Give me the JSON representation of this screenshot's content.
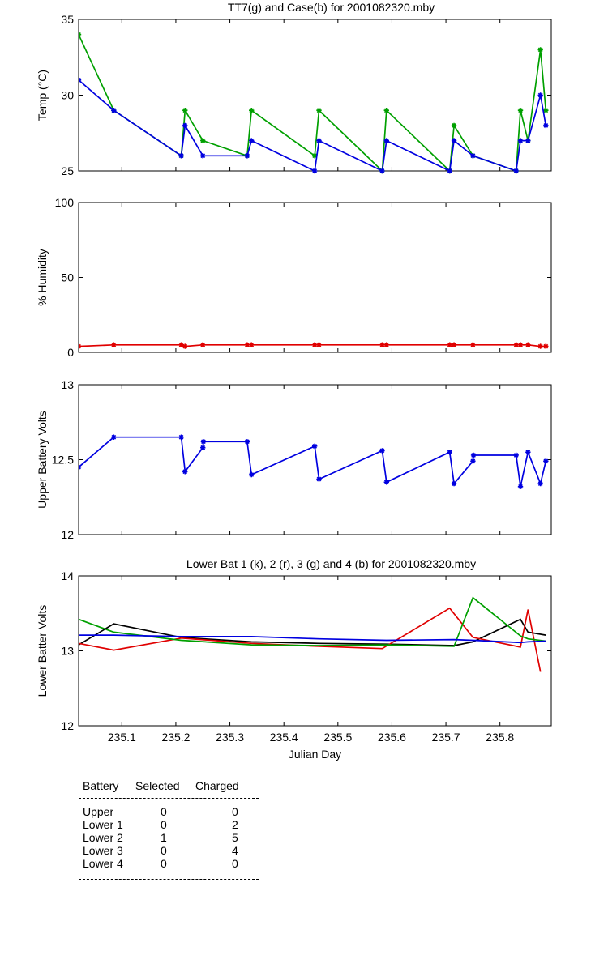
{
  "chart_data": [
    {
      "type": "line",
      "title": "TT7(g) and Case(b) for 2001082320.mby",
      "xlabel": "",
      "ylabel": "Temp  (°C)",
      "xlim": [
        235.02,
        235.895
      ],
      "ylim": [
        25,
        35
      ],
      "yticks": [
        "25",
        "30",
        "35"
      ],
      "xticks": [
        235.1,
        235.2,
        235.3,
        235.4,
        235.5,
        235.6,
        235.7,
        235.8
      ],
      "show_xtick_labels": false,
      "grid": false,
      "markers": true,
      "series": [
        {
          "color": "#00a000",
          "x": [
            235.02,
            235.085,
            235.21,
            235.217,
            235.25,
            235.332,
            235.34,
            235.457,
            235.465,
            235.582,
            235.59,
            235.707,
            235.715,
            235.75,
            235.83,
            235.838,
            235.852,
            235.875,
            235.885
          ],
          "y": [
            34,
            29,
            26,
            29,
            27,
            26,
            29,
            26,
            29,
            25,
            29,
            25,
            28,
            26,
            25,
            29,
            27,
            33,
            29
          ]
        },
        {
          "color": "#0000e0",
          "x": [
            235.02,
            235.085,
            235.21,
            235.217,
            235.25,
            235.332,
            235.34,
            235.457,
            235.465,
            235.582,
            235.59,
            235.707,
            235.715,
            235.75,
            235.83,
            235.838,
            235.852,
            235.875,
            235.885
          ],
          "y": [
            31,
            29,
            26,
            28,
            26,
            26,
            27,
            25,
            27,
            25,
            27,
            25,
            27,
            26,
            25,
            27,
            27,
            30,
            28
          ]
        }
      ]
    },
    {
      "type": "line",
      "title": "",
      "xlabel": "",
      "ylabel": "% Humidity",
      "xlim": [
        235.02,
        235.895
      ],
      "ylim": [
        0,
        100
      ],
      "yticks": [
        "0",
        "50",
        "100"
      ],
      "xticks": [
        235.1,
        235.2,
        235.3,
        235.4,
        235.5,
        235.6,
        235.7,
        235.8
      ],
      "show_xtick_labels": false,
      "grid": false,
      "markers": true,
      "series": [
        {
          "color": "#e00000",
          "x": [
            235.02,
            235.085,
            235.21,
            235.217,
            235.25,
            235.332,
            235.34,
            235.457,
            235.465,
            235.582,
            235.59,
            235.707,
            235.715,
            235.75,
            235.83,
            235.838,
            235.852,
            235.875,
            235.885
          ],
          "y": [
            4,
            5,
            5,
            4,
            5,
            5,
            5,
            5,
            5,
            5,
            5,
            5,
            5,
            5,
            5,
            5,
            5,
            4,
            4
          ]
        }
      ]
    },
    {
      "type": "line",
      "title": "",
      "xlabel": "",
      "ylabel": "Upper Battery Volts",
      "xlim": [
        235.02,
        235.895
      ],
      "ylim": [
        12,
        13
      ],
      "yticks": [
        "12",
        "12.5",
        "13"
      ],
      "xticks": [
        235.1,
        235.2,
        235.3,
        235.4,
        235.5,
        235.6,
        235.7,
        235.8
      ],
      "show_xtick_labels": false,
      "grid": false,
      "markers": true,
      "series": [
        {
          "color": "#0000e0",
          "x": [
            235.02,
            235.085,
            235.21,
            235.217,
            235.25,
            235.251,
            235.332,
            235.34,
            235.457,
            235.465,
            235.582,
            235.59,
            235.707,
            235.715,
            235.75,
            235.751,
            235.83,
            235.838,
            235.852,
            235.875,
            235.885
          ],
          "y": [
            12.45,
            12.65,
            12.65,
            12.42,
            12.58,
            12.62,
            12.62,
            12.4,
            12.59,
            12.37,
            12.56,
            12.35,
            12.55,
            12.34,
            12.49,
            12.53,
            12.53,
            12.32,
            12.55,
            12.34,
            12.49
          ]
        }
      ]
    },
    {
      "type": "line",
      "title": "Lower Bat 1 (k), 2 (r), 3 (g) and 4 (b) for 2001082320.mby",
      "xlabel": "Julian Day",
      "ylabel": "Lower Batter Volts",
      "xlim": [
        235.02,
        235.895
      ],
      "ylim": [
        12,
        14
      ],
      "yticks": [
        "12",
        "13",
        "14"
      ],
      "xticks": [
        235.1,
        235.2,
        235.3,
        235.4,
        235.5,
        235.6,
        235.7,
        235.8
      ],
      "xtick_labels": [
        "235.1",
        "235.2",
        "235.3",
        "235.4",
        "235.5",
        "235.6",
        "235.7",
        "235.8"
      ],
      "show_xtick_labels": true,
      "grid": false,
      "markers": false,
      "series": [
        {
          "color": "#000000",
          "x": [
            235.02,
            235.085,
            235.21,
            235.34,
            235.465,
            235.59,
            235.715,
            235.75,
            235.838,
            235.852,
            235.885
          ],
          "y": [
            13.08,
            13.36,
            13.18,
            13.12,
            13.1,
            13.09,
            13.07,
            13.12,
            13.42,
            13.25,
            13.21
          ]
        },
        {
          "color": "#e00000",
          "x": [
            235.02,
            235.085,
            235.21,
            235.34,
            235.465,
            235.582,
            235.707,
            235.75,
            235.838,
            235.852,
            235.875
          ],
          "y": [
            13.1,
            13.01,
            13.17,
            13.1,
            13.06,
            13.03,
            13.57,
            13.18,
            13.05,
            13.55,
            12.72
          ]
        },
        {
          "color": "#00a000",
          "x": [
            235.02,
            235.085,
            235.21,
            235.34,
            235.465,
            235.59,
            235.715,
            235.75,
            235.838,
            235.852,
            235.885
          ],
          "y": [
            13.42,
            13.25,
            13.14,
            13.08,
            13.07,
            13.08,
            13.06,
            13.71,
            13.2,
            13.16,
            13.13
          ]
        },
        {
          "color": "#0000e0",
          "x": [
            235.02,
            235.085,
            235.21,
            235.34,
            235.465,
            235.59,
            235.715,
            235.75,
            235.838,
            235.852,
            235.885
          ],
          "y": [
            13.21,
            13.21,
            13.19,
            13.19,
            13.16,
            13.14,
            13.15,
            13.14,
            13.11,
            13.12,
            13.13
          ]
        }
      ]
    }
  ],
  "battery_table": {
    "headers": [
      "Battery",
      "Selected",
      "Charged"
    ],
    "rows": [
      {
        "battery": "Upper",
        "selected": "0",
        "charged": "0"
      },
      {
        "battery": "Lower 1",
        "selected": "0",
        "charged": "2"
      },
      {
        "battery": "Lower 2",
        "selected": "1",
        "charged": "5"
      },
      {
        "battery": "Lower 3",
        "selected": "0",
        "charged": "4"
      },
      {
        "battery": "Lower 4",
        "selected": "0",
        "charged": "0"
      }
    ]
  }
}
